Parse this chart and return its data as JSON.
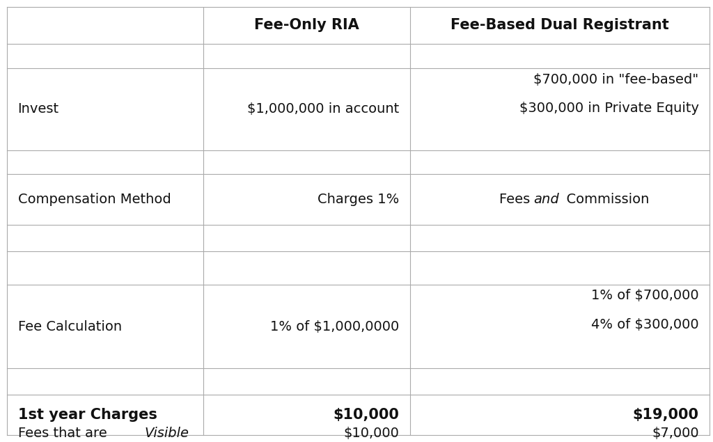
{
  "background_color": "#ffffff",
  "line_color": "#aaaaaa",
  "text_color": "#111111",
  "font_size_header": 15,
  "font_size_body": 14,
  "vlines": [
    0.01,
    0.285,
    0.575,
    0.995
  ],
  "hlines": [
    0.985,
    0.9,
    0.845,
    0.66,
    0.605,
    0.49,
    0.43,
    0.355,
    0.165,
    0.105,
    0.015
  ],
  "header": {
    "col1": "Fee-Only RIA",
    "col2": "Fee-Based Dual Registrant"
  }
}
